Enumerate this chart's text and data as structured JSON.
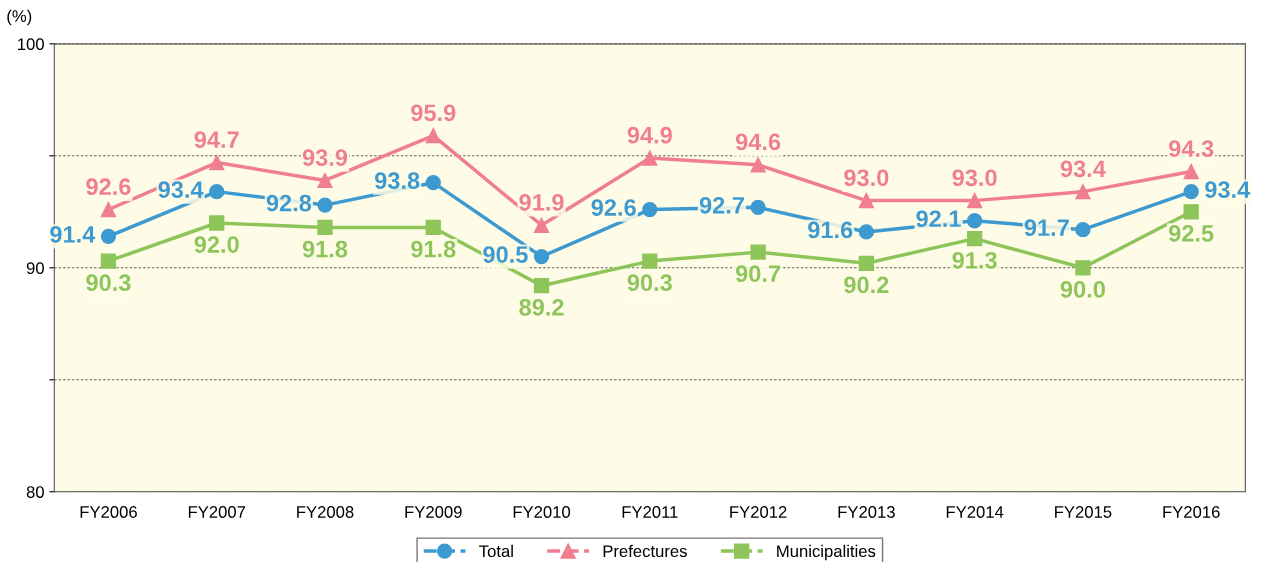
{
  "chart_data": {
    "type": "line",
    "ylabel": "(%)",
    "categories": [
      "FY2006",
      "FY2007",
      "FY2008",
      "FY2009",
      "FY2010",
      "FY2011",
      "FY2012",
      "FY2013",
      "FY2014",
      "FY2015",
      "FY2016"
    ],
    "series": [
      {
        "name": "Total",
        "color": "#3d9ad1",
        "marker": "circle",
        "values": [
          91.4,
          93.4,
          92.8,
          93.8,
          90.5,
          92.6,
          92.7,
          91.6,
          92.1,
          91.7,
          93.4
        ],
        "value_labels": [
          "91.4",
          "93.4",
          "92.8",
          "93.8",
          "90.5",
          "92.6",
          "92.7",
          "91.6",
          "92.1",
          "91.7",
          "93.4"
        ]
      },
      {
        "name": "Prefectures",
        "color": "#ef7f8f",
        "marker": "triangle",
        "values": [
          92.6,
          94.7,
          93.9,
          95.9,
          91.9,
          94.9,
          94.6,
          93.0,
          93.0,
          93.4,
          94.3
        ],
        "value_labels": [
          "92.6",
          "94.7",
          "93.9",
          "95.9",
          "91.9",
          "94.9",
          "94.6",
          "93.0",
          "93.0",
          "93.4",
          "94.3"
        ]
      },
      {
        "name": "Municipalities",
        "color": "#8dc55a",
        "marker": "square",
        "values": [
          90.3,
          92.0,
          91.8,
          91.8,
          89.2,
          90.3,
          90.7,
          90.2,
          91.3,
          90.0,
          92.5
        ],
        "value_labels": [
          "90.3",
          "92.0",
          "91.8",
          "91.8",
          "89.2",
          "90.3",
          "90.7",
          "90.2",
          "91.3",
          "90.0",
          "92.5"
        ]
      }
    ],
    "ylim": [
      80,
      100
    ],
    "yticks": [
      80,
      {
        "value": 85,
        "label": null
      },
      90,
      {
        "value": 95,
        "label": null
      },
      100
    ],
    "grid": "y",
    "legend": "bottom",
    "line_style": "solid"
  }
}
